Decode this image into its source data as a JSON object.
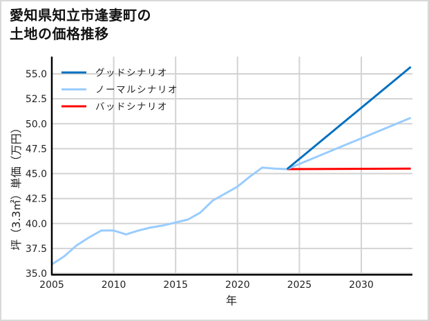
{
  "title_lines": [
    "愛知県知立市逢妻町の",
    "土地の価格推移"
  ],
  "chart_data": {
    "type": "line",
    "title": "愛知県知立市逢妻町の土地の価格推移",
    "xlabel": "年",
    "ylabel": "坪（3.3㎡）単価（万円）",
    "xlim": [
      2005,
      2034
    ],
    "ylim": [
      35.0,
      56.7
    ],
    "xticks": [
      2005,
      2010,
      2015,
      2020,
      2025,
      2030
    ],
    "yticks": [
      35.0,
      37.5,
      40.0,
      42.5,
      45.0,
      47.5,
      50.0,
      52.5,
      55.0
    ],
    "ytick_labels": [
      "35.0",
      "37.5",
      "40.0",
      "42.5",
      "45.0",
      "47.5",
      "50.0",
      "52.5",
      "55.0"
    ],
    "grid": true,
    "legend_position": "upper left",
    "historical": {
      "x": [
        2005,
        2006,
        2007,
        2008,
        2009,
        2010,
        2011,
        2012,
        2013,
        2014,
        2015,
        2016,
        2017,
        2018,
        2019,
        2020,
        2021,
        2022,
        2023,
        2024
      ],
      "values": [
        35.9,
        36.7,
        37.8,
        38.6,
        39.3,
        39.3,
        38.9,
        39.3,
        39.6,
        39.8,
        40.1,
        40.4,
        41.1,
        42.3,
        43.0,
        43.7,
        44.7,
        45.6,
        45.5,
        45.45
      ],
      "color": "#99ccff"
    },
    "series": [
      {
        "name": "グッドシナリオ",
        "color": "#0070c0",
        "x": [
          2024,
          2034
        ],
        "values": [
          45.45,
          55.7
        ]
      },
      {
        "name": "ノーマルシナリオ",
        "color": "#99ccff",
        "x": [
          2024,
          2034
        ],
        "values": [
          45.45,
          50.6
        ]
      },
      {
        "name": "バッドシナリオ",
        "color": "#ff0000",
        "x": [
          2024,
          2034
        ],
        "values": [
          45.45,
          45.5
        ]
      }
    ]
  }
}
